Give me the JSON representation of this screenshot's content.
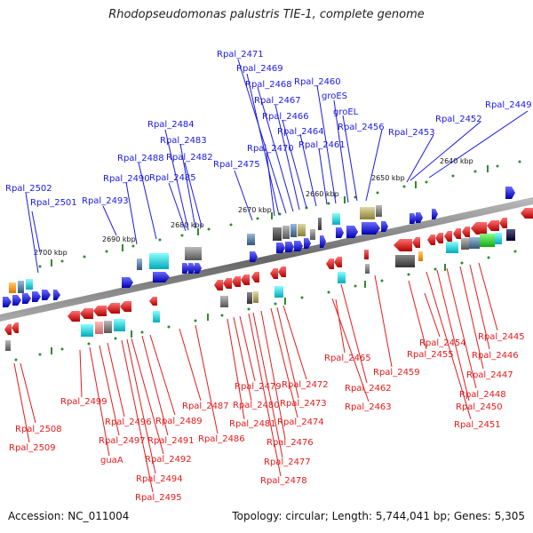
{
  "title": "Rhodopseudomonas palustris TIE-1, complete genome",
  "accession_text": "Accession: NC_011004",
  "topology_text": "Topology: circular; Length: 5,744,041 bp; Genes: 5,305",
  "colors": {
    "forward": "#1a1ae6",
    "reverse": "#e61a1a",
    "axis": "#7a7a7a",
    "tick": "#2e8b2e",
    "background": "#ffffff"
  },
  "kbp_labels": [
    "2640 kbp",
    "2650 kbp",
    "2660 kbp",
    "2670 kbp",
    "2680 kbp",
    "2690 kbp",
    "2700 kbp"
  ],
  "forward_labels": [
    "Rpal_2449",
    "Rpal_2452",
    "Rpal_2453",
    "Rpal_2456",
    "groEL",
    "groES",
    "Rpal_2460",
    "Rpal_2461",
    "Rpal_2464",
    "Rpal_2466",
    "Rpal_2467",
    "Rpal_2468",
    "Rpal_2469",
    "Rpal_2471",
    "Rpal_2470",
    "Rpal_2475",
    "Rpal_2482",
    "Rpal_2483",
    "Rpal_2484",
    "Rpal_2485",
    "Rpal_2488",
    "Rpal_2490",
    "Rpal_2493",
    "Rpal_2501",
    "Rpal_2502"
  ],
  "reverse_labels": [
    "Rpal_2445",
    "Rpal_2446",
    "Rpal_2447",
    "Rpal_2448",
    "Rpal_2450",
    "Rpal_2451",
    "Rpal_2454",
    "Rpal_2455",
    "Rpal_2459",
    "Rpal_2462",
    "Rpal_2463",
    "Rpal_2465",
    "Rpal_2472",
    "Rpal_2473",
    "Rpal_2474",
    "Rpal_2476",
    "Rpal_2477",
    "Rpal_2478",
    "Rpal_2479",
    "Rpal_2480",
    "Rpal_2481",
    "Rpal_2486",
    "Rpal_2487",
    "Rpal_2489",
    "Rpal_2491",
    "Rpal_2492",
    "Rpal_2494",
    "Rpal_2495",
    "Rpal_2496",
    "Rpal_2497",
    "guaA",
    "Rpal_2499",
    "Rpal_2508",
    "Rpal_2509"
  ]
}
